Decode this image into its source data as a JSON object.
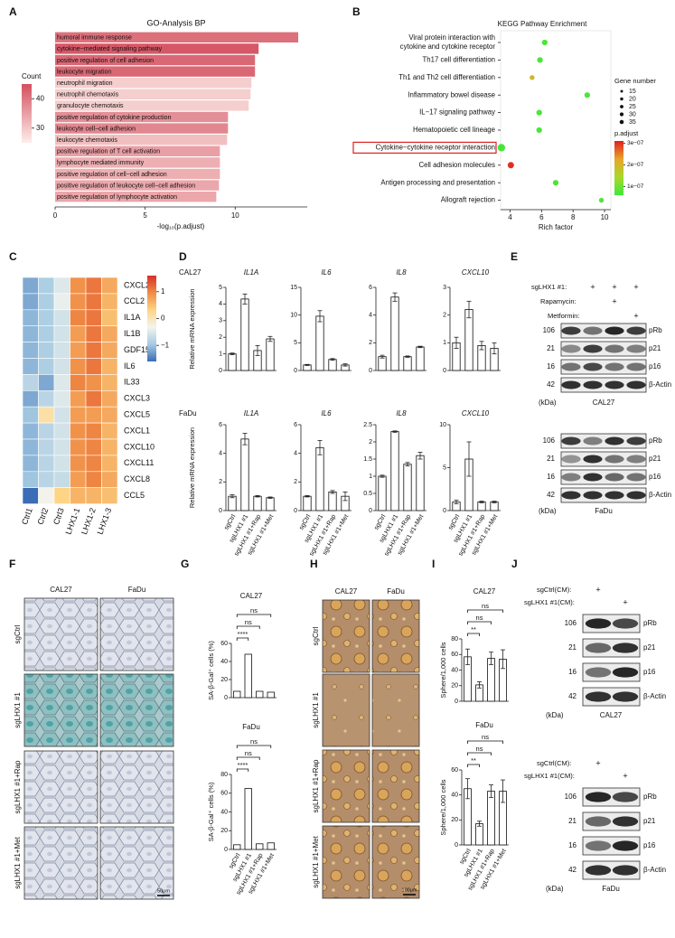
{
  "panel_a": {
    "label": "A",
    "title": "GO-Analysis BP",
    "x_label": "-log₁₀(p.adjust)",
    "xlim": [
      0,
      14
    ],
    "xticks": [
      0,
      5,
      10
    ],
    "legend_title": "Count",
    "legend_ticks": [
      40,
      30
    ],
    "count_range": [
      25,
      45
    ],
    "color_low": "#fdeeea",
    "color_high": "#d4505f",
    "terms": [
      "humoral immune response",
      "cytokine−mediated signaling pathway",
      "positive regulation of cell adhesion",
      "leukocyte migration",
      "neutrophil migration",
      "neutrophil chemotaxis",
      "granulocyte chemotaxis",
      "positive regulation of cytokine production",
      "leukocyte cell−cell adhesion",
      "leukocyte chemotaxis",
      "positive regulation of T cell activation",
      "lymphocyte mediated immunity",
      "positive regulation of cell−cell adhesion",
      "positive regulation of leukocyte cell−cell adhesion",
      "positive regulation of lymphocyte activation"
    ],
    "values": [
      13.5,
      11.3,
      11.1,
      11.1,
      10.9,
      10.85,
      10.75,
      9.6,
      9.6,
      9.55,
      9.15,
      9.15,
      9.15,
      9.1,
      8.95
    ],
    "counts": [
      41,
      44,
      42,
      42,
      29,
      29,
      29,
      37,
      38,
      31,
      35,
      33,
      33,
      34,
      34
    ]
  },
  "panel_b": {
    "label": "B",
    "title": "KEGG Pathway Enrichment",
    "x_label": "Rich factor",
    "xlim": [
      3.4,
      10.4
    ],
    "xticks": [
      4,
      6,
      8,
      10
    ],
    "pathways": [
      [
        "Viral protein interaction with",
        "cytokine and cytokine receptor"
      ],
      [
        "Th17 cell differentiation"
      ],
      [
        "Th1 and Th2 cell differentiation"
      ],
      [
        "Inflammatory bowel disease"
      ],
      [
        "IL−17 signaling pathway"
      ],
      [
        "Hematopoietic cell lineage"
      ],
      [
        "Cytokine−cytokine receptor interaction"
      ],
      [
        "Cell adhesion molecules"
      ],
      [
        "Antigen processing and presentation"
      ],
      [
        "Allograft rejection"
      ]
    ],
    "rich_factor": [
      6.2,
      5.9,
      5.4,
      8.9,
      5.85,
      5.85,
      3.45,
      4.05,
      6.9,
      9.8
    ],
    "gene_number": [
      20,
      20,
      15,
      20,
      20,
      20,
      35,
      25,
      20,
      15
    ],
    "p_adjust": [
      7e-08,
      7e-08,
      2e-07,
      7e-08,
      7e-08,
      7e-08,
      6.5e-08,
      3e-07,
      7e-08,
      8e-08
    ],
    "highlight": 6,
    "size_legend_title": "Gene number",
    "size_ticks": [
      15,
      20,
      25,
      30,
      35
    ],
    "color_legend_title": "p.adjust",
    "color_range": [
      6e-08,
      3.1e-07
    ],
    "colormap": [
      "#3ee83a",
      "#a8d82b",
      "#e8a52a",
      "#e02020"
    ],
    "color_ticks": [
      {
        "value": 3e-07,
        "label": "3e−07"
      },
      {
        "value": 2e-07,
        "label": "2e−07"
      },
      {
        "value": 1e-07,
        "label": "1e−07"
      }
    ]
  },
  "panel_c": {
    "label": "C",
    "genes": [
      "CXCL2",
      "CCL2",
      "IL1A",
      "IL1B",
      "GDF15",
      "IL6",
      "IL33",
      "CXCL3",
      "CXCL5",
      "CXCL1",
      "CXCL10",
      "CXCL11",
      "CXCL8",
      "CCL5"
    ],
    "samples": [
      "Ctrl1",
      "Ctrl2",
      "Ctrl3",
      "LHX1-1",
      "LHX1-2",
      "LHX1-3"
    ],
    "values": [
      [
        -1.2,
        -0.9,
        -0.5,
        0.9,
        1.1,
        0.7
      ],
      [
        -1.2,
        -0.9,
        -0.4,
        0.9,
        1.1,
        0.6
      ],
      [
        -1.1,
        -0.9,
        -0.6,
        1.0,
        1.1,
        0.5
      ],
      [
        -1.1,
        -0.9,
        -0.6,
        0.8,
        1.1,
        0.7
      ],
      [
        -1.1,
        -0.9,
        -0.6,
        0.8,
        1.1,
        0.7
      ],
      [
        -1.1,
        -0.9,
        -0.6,
        0.9,
        1.1,
        0.6
      ],
      [
        -0.8,
        -1.2,
        -0.5,
        1.0,
        0.9,
        0.6
      ],
      [
        -1.2,
        -0.8,
        -0.5,
        0.8,
        1.1,
        0.7
      ],
      [
        -1.0,
        0.1,
        -0.6,
        0.8,
        0.8,
        0.7
      ],
      [
        -1.1,
        -0.8,
        -0.6,
        0.9,
        1.0,
        0.6
      ],
      [
        -1.1,
        -0.8,
        -0.6,
        0.9,
        1.0,
        0.6
      ],
      [
        -1.1,
        -0.8,
        -0.6,
        0.9,
        1.0,
        0.6
      ],
      [
        -1.0,
        -0.8,
        -0.7,
        0.8,
        1.0,
        0.7
      ],
      [
        -1.6,
        -0.3,
        0.3,
        0.6,
        0.6,
        0.5
      ]
    ],
    "color_range": [
      -1.6,
      1.6
    ],
    "colormap": [
      "#3a6db5",
      "#a6cbe2",
      "#f3f4ee",
      "#fdd482",
      "#f08b45",
      "#d73027"
    ],
    "colorbar_ticks": [
      1,
      0,
      {
        "value": -1,
        "label": "−1"
      }
    ]
  },
  "panel_d": {
    "label": "D",
    "y_label": "Relative mRNA expression",
    "groups": [
      "sgCtrl",
      "sgLHX1 #1",
      "sgLHX1 #1+Rap",
      "sgLHX1 #1+Met"
    ],
    "cell_lines": [
      {
        "name": "CAL27",
        "charts": [
          {
            "gene": "IL1A",
            "ylim": [
              0,
              5
            ],
            "yticks": [
              0,
              1,
              2,
              3,
              4,
              5
            ],
            "values": [
              1,
              4.3,
              1.2,
              1.9
            ],
            "errors": [
              0.05,
              0.3,
              0.3,
              0.15
            ]
          },
          {
            "gene": "IL6",
            "ylim": [
              0,
              15
            ],
            "yticks": [
              0,
              5,
              10,
              15
            ],
            "values": [
              1,
              9.8,
              2,
              1
            ],
            "errors": [
              0.1,
              1,
              0.15,
              0.2
            ]
          },
          {
            "gene": "IL8",
            "ylim": [
              0,
              6
            ],
            "yticks": [
              0,
              2,
              4,
              6
            ],
            "values": [
              1,
              5.3,
              1,
              1.7
            ],
            "errors": [
              0.1,
              0.3,
              0.05,
              0.05
            ]
          },
          {
            "gene": "CXCL10",
            "ylim": [
              0,
              3
            ],
            "yticks": [
              0,
              1,
              2,
              3
            ],
            "values": [
              1,
              2.2,
              0.9,
              0.8
            ],
            "errors": [
              0.2,
              0.3,
              0.15,
              0.2
            ]
          }
        ]
      },
      {
        "name": "FaDu",
        "charts": [
          {
            "gene": "IL1A",
            "ylim": [
              0,
              6
            ],
            "yticks": [
              0,
              2,
              4,
              6
            ],
            "values": [
              1,
              5,
              1,
              0.9
            ],
            "errors": [
              0.1,
              0.4,
              0.05,
              0.05
            ]
          },
          {
            "gene": "IL6",
            "ylim": [
              0,
              6
            ],
            "yticks": [
              0,
              2,
              4,
              6
            ],
            "values": [
              1,
              4.4,
              1.3,
              1
            ],
            "errors": [
              0.05,
              0.5,
              0.1,
              0.3
            ]
          },
          {
            "gene": "IL8",
            "ylim": [
              0,
              2.5
            ],
            "yticks": [
              0,
              0.5,
              1,
              1.5,
              2,
              2.5
            ],
            "values": [
              1,
              2.3,
              1.35,
              1.6
            ],
            "errors": [
              0.03,
              0.02,
              0.05,
              0.1
            ]
          },
          {
            "gene": "CXCL10",
            "ylim": [
              0,
              10
            ],
            "yticks": [
              0,
              5,
              10
            ],
            "values": [
              1,
              6,
              1,
              1
            ],
            "errors": [
              0.2,
              2,
              0.1,
              0.1
            ]
          }
        ]
      }
    ]
  },
  "panel_e": {
    "label": "E",
    "kda_label": "(kDa)",
    "conditions": [
      {
        "name": "sgLHX1 #1:",
        "marks": [
          null,
          "+",
          "+",
          "+"
        ]
      },
      {
        "name": "Rapamycin:",
        "marks": [
          null,
          null,
          "+",
          null
        ]
      },
      {
        "name": "Metformin:",
        "marks": [
          null,
          null,
          null,
          "+"
        ]
      }
    ],
    "blots": [
      {
        "cell_line": "CAL27",
        "rows": [
          {
            "kda": 106,
            "protein": "pRb"
          },
          {
            "kda": 21,
            "protein": "p21"
          },
          {
            "kda": 16,
            "protein": "p16"
          },
          {
            "kda": 42,
            "protein": "β-Actin"
          }
        ]
      },
      {
        "cell_line": "FaDu",
        "rows": [
          {
            "kda": 106,
            "protein": "pRb"
          },
          {
            "kda": 21,
            "protein": "p21"
          },
          {
            "kda": 16,
            "protein": "p16"
          },
          {
            "kda": 42,
            "protein": "β-Actin"
          }
        ]
      }
    ]
  },
  "panel_f": {
    "label": "F",
    "columns": [
      "CAL27",
      "FaDu"
    ],
    "rows": [
      "sgCtrl",
      "sgLHX1 #1",
      "sgLHX1 #1+Rap",
      "sgLHX1 #1+Met"
    ],
    "scale_bar": "50μm"
  },
  "panel_g": {
    "label": "G",
    "y_label": "SA-β-Gal⁺ cells (%)",
    "groups": [
      "sgCtrl",
      "sgLHX1 #1",
      "sgLHX1 #1+Rap",
      "sgLHX1 #1+Met"
    ],
    "charts": [
      {
        "title": "CAL27",
        "ylim": [
          0,
          60
        ],
        "yticks": [
          0,
          20,
          40,
          60
        ],
        "values": [
          7,
          48,
          7,
          6
        ],
        "significance": [
          "****",
          "ns",
          "ns"
        ]
      },
      {
        "title": "FaDu",
        "ylim": [
          0,
          80
        ],
        "yticks": [
          0,
          20,
          40,
          60,
          80
        ],
        "values": [
          5,
          65,
          6,
          7
        ],
        "significance": [
          "****",
          "ns",
          "ns"
        ]
      }
    ]
  },
  "panel_h": {
    "label": "H",
    "columns": [
      "CAL27",
      "FaDu"
    ],
    "rows": [
      "sgCtrl",
      "sgLHX1 #1",
      "sgLHX1 #1+Rap",
      "sgLHX1 #1+Met"
    ],
    "scale_bar": "100μm"
  },
  "panel_i": {
    "label": "I",
    "y_label": "Sphere/1,000 cells",
    "groups": [
      "sgCtrl",
      "sgLHX1 #1",
      "sgLHX1 #1+Rap",
      "sgLHX1 #1+Met"
    ],
    "charts": [
      {
        "title": "CAL27",
        "ylim": [
          0,
          80
        ],
        "yticks": [
          0,
          20,
          40,
          60,
          80
        ],
        "values": [
          57,
          21,
          55,
          54
        ],
        "errors": [
          10,
          4,
          8,
          12
        ],
        "significance": [
          "**",
          "ns",
          "ns"
        ]
      },
      {
        "title": "FaDu",
        "ylim": [
          0,
          60
        ],
        "yticks": [
          0,
          20,
          40,
          60
        ],
        "values": [
          45,
          17,
          43,
          43
        ],
        "errors": [
          8,
          2,
          5,
          9
        ],
        "significance": [
          "**",
          "ns",
          "ns"
        ]
      }
    ]
  },
  "panel_j": {
    "label": "J",
    "kda_label": "(kDa)",
    "blots": [
      {
        "cell_line": "CAL27",
        "conditions": [
          {
            "name": "sgCtrl(CM):",
            "marks": [
              "+",
              null
            ]
          },
          {
            "name": "sgLHX1 #1(CM):",
            "marks": [
              null,
              "+"
            ]
          }
        ],
        "rows": [
          {
            "kda": 106,
            "protein": "pRb"
          },
          {
            "kda": 21,
            "protein": "p21"
          },
          {
            "kda": 16,
            "protein": "p16"
          },
          {
            "kda": 42,
            "protein": "β-Actin"
          }
        ]
      },
      {
        "cell_line": "FaDu",
        "conditions": [
          {
            "name": "sgCtrl(CM):",
            "marks": [
              "+",
              null
            ]
          },
          {
            "name": "sgLHX1 #1(CM):",
            "marks": [
              null,
              "+"
            ]
          }
        ],
        "rows": [
          {
            "kda": 106,
            "protein": "pRb"
          },
          {
            "kda": 21,
            "protein": "p21"
          },
          {
            "kda": 16,
            "protein": "p16"
          },
          {
            "kda": 42,
            "protein": "β-Actin"
          }
        ]
      }
    ]
  }
}
